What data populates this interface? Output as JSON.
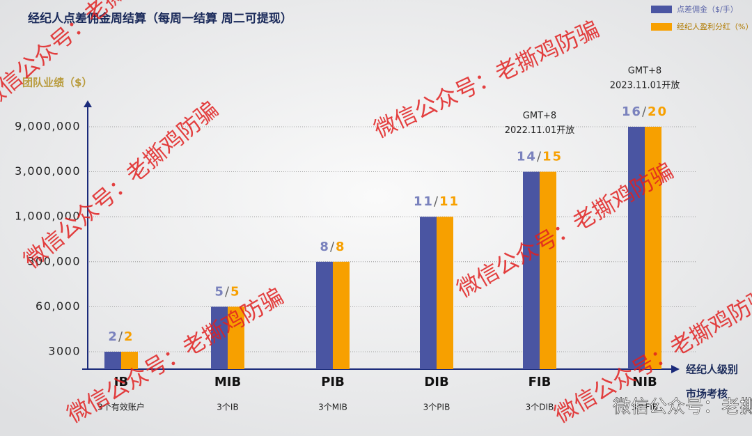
{
  "chart_data": {
    "type": "bar",
    "title": "经纪人点差佣金周结算（每周一结算 周二可提现）",
    "y_label": "团队业绩（$）",
    "x_label": "经纪人级别",
    "x_sublabel": "市场考核",
    "categories": [
      "IB",
      "MIB",
      "PIB",
      "DIB",
      "FIB",
      "NIB"
    ],
    "requirements": [
      "3个有效账户",
      "3个IB",
      "3个MIB",
      "3个PIB",
      "3个DIB",
      "3个FIB"
    ],
    "values": [
      3000,
      60000,
      300000,
      1000000,
      3000000,
      9000000
    ],
    "series": [
      {
        "name": "点差佣金（$/手）",
        "color": "#4a55a2",
        "values": [
          2,
          5,
          8,
          11,
          14,
          16
        ]
      },
      {
        "name": "经纪人盈利分红（%）",
        "color": "#f7a000",
        "values": [
          2,
          5,
          8,
          11,
          15,
          20
        ]
      }
    ],
    "annotations": [
      {
        "category": "FIB",
        "lines": [
          "GMT+8",
          "2022.11.01开放"
        ]
      },
      {
        "category": "NIB",
        "lines": [
          "GMT+8",
          "2023.11.01开放"
        ]
      }
    ],
    "ylim": [
      0,
      9000000
    ],
    "yticks": [
      3000,
      {
        "value": 60000,
        "label": "60,000"
      },
      {
        "value": 300000,
        "label": "300,000"
      },
      {
        "value": 1000000,
        "label": "1,000,000"
      },
      {
        "value": 3000000,
        "label": "3,000,000"
      },
      {
        "value": 9000000,
        "label": "9,000,000"
      }
    ],
    "grid": true,
    "watermark": "微信公众号：老撕鸡防骗"
  }
}
